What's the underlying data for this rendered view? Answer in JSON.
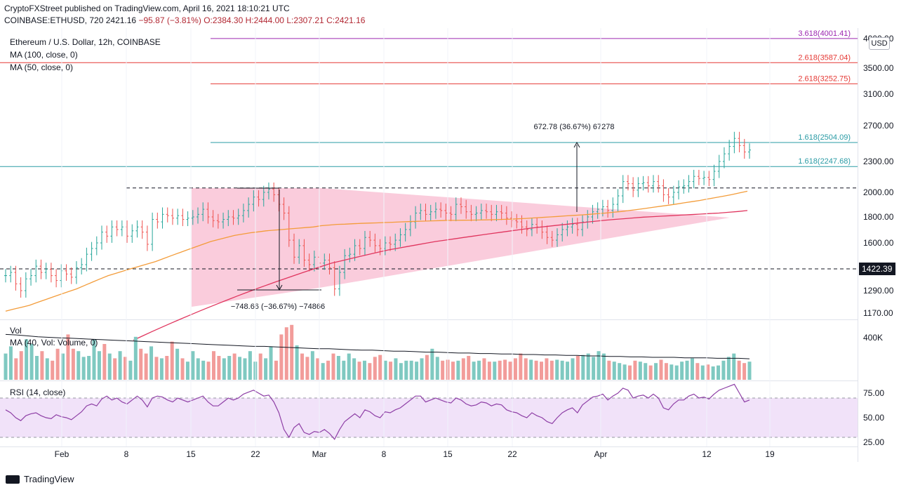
{
  "header": {
    "line1": "CryptoFXStreet published on TradingView.com, April 16, 2021 18:10:21 UTC",
    "symbol": "COINBASE:ETHUSD, 720",
    "last": "2421.16",
    "change": "−95.87 (−3.81%)",
    "o": "O:2384.30",
    "h": "H:2444.00",
    "l": "L:2307.21",
    "c": "C:2421.16"
  },
  "legend": {
    "title": "Ethereum / U.S. Dollar, 12h, COINBASE",
    "ma100": "MA (100, close, 0)",
    "ma50": "MA (50, close, 0)",
    "vol": "Vol",
    "vol_ma": "MA (40, Vol: Volume, 0)",
    "rsi": "RSI (14, close)"
  },
  "currency": "USD",
  "footer": "TradingView",
  "colors": {
    "up": "#26a69a",
    "down": "#ef5350",
    "ma50": "#f39c3a",
    "ma100": "#e0355e",
    "triangle": "#f8bbd0",
    "rsi_line": "#8e3fa6",
    "rsi_band": "#f1e2f9",
    "fib_teal": "#2a9ba5",
    "fib_red": "#e53935",
    "fib_purple": "#9c27b0"
  },
  "chart_data": {
    "type": "line",
    "price_axis": {
      "ticks": [
        "4000.00",
        "3500.00",
        "3100.00",
        "2700.00",
        "2300.00",
        "2000.00",
        "1800.00",
        "1600.00",
        "1422.39",
        "1290.00",
        "1170.00"
      ]
    },
    "volume_axis": {
      "ticks": [
        "400K"
      ]
    },
    "rsi_axis": {
      "ticks": [
        "75.00",
        "50.00",
        "25.00"
      ]
    },
    "x_ticks": [
      "Feb",
      "8",
      "15",
      "22",
      "Mar",
      "8",
      "15",
      "22",
      "Apr",
      "12",
      "19"
    ],
    "levels": [
      {
        "label": "3.618(4001.41)",
        "value": 4001.41
      },
      {
        "label": "2.618(3587.04)",
        "value": 3587.04
      },
      {
        "label": "2.618(3252.75)",
        "value": 3252.75
      },
      {
        "label": "1.618(2504.09)",
        "value": 2504.09
      },
      {
        "label": "1.618(2247.68)",
        "value": 2247.68
      },
      {
        "label": "",
        "value": 2040
      },
      {
        "label": "",
        "value": 1422.39
      }
    ],
    "annotations": {
      "measure_up": "672.78 (36.67%) 67278",
      "measure_down": "−748.66 (−36.67%) −74866"
    },
    "closes": [
      1380,
      1400,
      1330,
      1290,
      1360,
      1380,
      1440,
      1400,
      1420,
      1380,
      1350,
      1410,
      1390,
      1370,
      1430,
      1450,
      1520,
      1560,
      1600,
      1680,
      1650,
      1720,
      1700,
      1720,
      1650,
      1690,
      1720,
      1680,
      1590,
      1780,
      1760,
      1820,
      1810,
      1790,
      1810,
      1780,
      1790,
      1800,
      1820,
      1860,
      1800,
      1770,
      1760,
      1780,
      1800,
      1790,
      1810,
      1850,
      1900,
      1960,
      1940,
      2000,
      2030,
      1980,
      1900,
      1830,
      1620,
      1500,
      1580,
      1480,
      1450,
      1500,
      1460,
      1480,
      1430,
      1300,
      1400,
      1510,
      1520,
      1580,
      1560,
      1640,
      1620,
      1580,
      1560,
      1600,
      1590,
      1620,
      1660,
      1700,
      1760,
      1830,
      1850,
      1820,
      1840,
      1860,
      1850,
      1830,
      1820,
      1900,
      1880,
      1840,
      1820,
      1830,
      1850,
      1840,
      1820,
      1840,
      1830,
      1790,
      1770,
      1760,
      1720,
      1700,
      1740,
      1720,
      1680,
      1640,
      1620,
      1660,
      1700,
      1720,
      1740,
      1700,
      1760,
      1800,
      1840,
      1860,
      1880,
      1850,
      1900,
      1970,
      2100,
      2080,
      2020,
      2080,
      2090,
      2060,
      2100,
      2060,
      1980,
      1960,
      2000,
      2050,
      2060,
      2100,
      2150,
      2130,
      2140,
      2120,
      2200,
      2300,
      2380,
      2460,
      2550,
      2470,
      2400,
      2421
    ],
    "ma50": [
      1180,
      1190,
      1200,
      1210,
      1225,
      1240,
      1255,
      1270,
      1285,
      1300,
      1320,
      1340,
      1360,
      1380,
      1395,
      1410,
      1425,
      1440,
      1455,
      1470,
      1490,
      1510,
      1530,
      1550,
      1570,
      1590,
      1610,
      1625,
      1640,
      1655,
      1665,
      1675,
      1682,
      1690,
      1695,
      1700,
      1705,
      1710,
      1715,
      1720,
      1730,
      1735,
      1740,
      1742,
      1745,
      1748,
      1750,
      1752,
      1755,
      1757,
      1760,
      1762,
      1764,
      1766,
      1768,
      1770,
      1772,
      1772,
      1773,
      1774,
      1775,
      1776,
      1778,
      1780,
      1782,
      1785,
      1788,
      1792,
      1796,
      1800,
      1804,
      1808,
      1812,
      1816,
      1820,
      1825,
      1830,
      1836,
      1842,
      1850,
      1858,
      1866,
      1875,
      1884,
      1893,
      1902,
      1912,
      1922,
      1932,
      1944,
      1956,
      1968,
      1980,
      1995,
      2010
    ],
    "ma100": [
      1040,
      1060,
      1080,
      1100,
      1120,
      1140,
      1160,
      1180,
      1200,
      1220,
      1240,
      1260,
      1280,
      1300,
      1320,
      1340,
      1360,
      1380,
      1400,
      1420,
      1440,
      1460,
      1475,
      1490,
      1505,
      1520,
      1535,
      1550,
      1562,
      1574,
      1586,
      1598,
      1610,
      1620,
      1630,
      1640,
      1650,
      1660,
      1670,
      1680,
      1690,
      1700,
      1710,
      1718,
      1726,
      1734,
      1742,
      1750,
      1758,
      1766,
      1774,
      1780,
      1786,
      1792,
      1798,
      1802,
      1806,
      1810,
      1814,
      1818,
      1822,
      1826,
      1830,
      1836,
      1842,
      1850
    ],
    "volume": [
      55,
      70,
      45,
      60,
      85,
      75,
      50,
      60,
      45,
      40,
      65,
      55,
      95,
      65,
      60,
      48,
      50,
      85,
      60,
      75,
      55,
      45,
      60,
      48,
      40,
      90,
      65,
      55,
      70,
      48,
      45,
      50,
      80,
      65,
      45,
      38,
      60,
      45,
      40,
      38,
      60,
      50,
      45,
      50,
      55,
      48,
      45,
      60,
      38,
      55,
      45,
      70,
      40,
      95,
      110,
      115,
      72,
      55,
      48,
      60,
      45,
      35,
      40,
      55,
      50,
      40,
      55,
      45,
      38,
      40,
      35,
      48,
      52,
      40,
      38,
      45,
      35,
      40,
      40,
      38,
      45,
      52,
      65,
      48,
      40,
      42,
      38,
      40,
      45,
      50,
      38,
      40,
      45,
      38,
      38,
      40,
      42,
      38,
      45,
      55,
      45,
      42,
      40,
      38,
      45,
      40,
      42,
      40,
      38,
      45,
      50,
      52,
      55,
      48,
      60,
      55,
      40,
      38,
      35,
      32,
      30,
      40,
      38,
      35,
      30,
      35,
      42,
      35,
      32,
      30,
      38,
      40,
      45,
      35,
      30,
      32,
      28,
      30,
      40,
      48,
      55,
      40,
      35,
      38
    ],
    "vol_ma": [
      95,
      94,
      92,
      90,
      89,
      88,
      87,
      86,
      85,
      84,
      83,
      82,
      81,
      80,
      79,
      78,
      77,
      76,
      75,
      74,
      73,
      72,
      71,
      70,
      70,
      69,
      68,
      67,
      66,
      65,
      65,
      64,
      63,
      62,
      62,
      61,
      60,
      60,
      59,
      58,
      58,
      57,
      56,
      56,
      55,
      55,
      54,
      54,
      53,
      53,
      52,
      52,
      51,
      51,
      50,
      50,
      49,
      49,
      48,
      48,
      47,
      47,
      47,
      46,
      46,
      46,
      45,
      45,
      45,
      44
    ],
    "rsi": [
      58,
      55,
      50,
      47,
      52,
      54,
      55,
      52,
      50,
      49,
      53,
      51,
      50,
      48,
      52,
      56,
      62,
      64,
      62,
      69,
      72,
      68,
      70,
      66,
      64,
      68,
      72,
      68,
      61,
      70,
      72,
      71,
      68,
      66,
      70,
      68,
      66,
      68,
      70,
      72,
      66,
      62,
      62,
      66,
      70,
      68,
      70,
      74,
      76,
      78,
      75,
      72,
      73,
      66,
      55,
      38,
      30,
      40,
      44,
      35,
      33,
      36,
      35,
      38,
      34,
      28,
      38,
      46,
      50,
      54,
      50,
      58,
      56,
      52,
      50,
      56,
      55,
      58,
      60,
      64,
      68,
      72,
      72,
      66,
      68,
      70,
      68,
      66,
      65,
      70,
      68,
      64,
      62,
      63,
      66,
      65,
      62,
      64,
      63,
      58,
      56,
      55,
      52,
      50,
      55,
      52,
      50,
      46,
      44,
      50,
      55,
      58,
      60,
      55,
      63,
      67,
      71,
      72,
      74,
      68,
      72,
      75,
      80,
      78,
      70,
      72,
      73,
      70,
      74,
      70,
      60,
      58,
      64,
      68,
      68,
      72,
      74,
      70,
      71,
      69,
      74,
      78,
      80,
      82,
      84,
      75,
      66,
      68
    ]
  }
}
